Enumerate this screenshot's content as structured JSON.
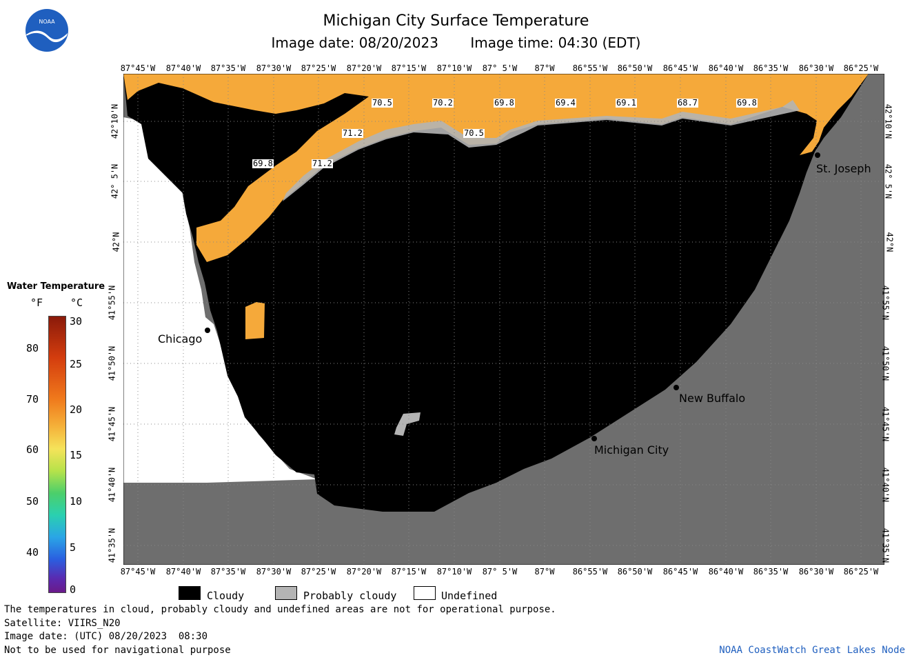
{
  "header": {
    "title": "Michigan City Surface Temperature",
    "image_date": "Image date: 08/20/2023",
    "image_time": "Image time: 04:30 (EDT)"
  },
  "logo": {
    "text": "NOAA"
  },
  "axes": {
    "lon_ticks": [
      "87°45'W",
      "87°40'W",
      "87°35'W",
      "87°30'W",
      "87°25'W",
      "87°20'W",
      "87°15'W",
      "87°10'W",
      "87° 5'W",
      "87°W",
      "86°55'W",
      "86°50'W",
      "86°45'W",
      "86°40'W",
      "86°35'W",
      "86°30'W",
      "86°25'W"
    ],
    "lat_ticks": [
      "42°10'N",
      "42° 5'N",
      "42°N",
      "41°55'N",
      "41°50'N",
      "41°45'N",
      "41°40'N",
      "41°35'N"
    ]
  },
  "legend": {
    "title": "Water Temperature",
    "unit_f": "°F",
    "unit_c": "°C",
    "f_ticks": [
      "80",
      "70",
      "60",
      "50",
      "40"
    ],
    "c_ticks": [
      "30",
      "25",
      "20",
      "15",
      "10",
      "5",
      "0"
    ]
  },
  "key": {
    "cloudy": "Cloudy",
    "probably_cloudy": "Probably cloudy",
    "undefined": "Undefined"
  },
  "cities": {
    "chicago": "Chicago",
    "st_joseph": "St. Joseph",
    "new_buffalo": "New Buffalo",
    "michigan_city": "Michigan City"
  },
  "temp_labels": [
    "70.5",
    "70.2",
    "69.8",
    "69.4",
    "69.1",
    "68.7",
    "69.8",
    "71.2",
    "70.5",
    "69.8",
    "71.2"
  ],
  "footer": {
    "line1": "The temperatures in cloud, probably cloudy and undefined areas are not for operational purpose.",
    "line2": "Satellite: VIIRS_N20",
    "line3": "Image date: (UTC) 08/20/2023  08:30",
    "line4": "Not to be used for navigational purpose",
    "credit": "NOAA CoastWatch Great Lakes Node"
  },
  "colors": {
    "land": "#6e6e6e",
    "cloud": "#000000",
    "probably_cloudy": "#b4b4b4",
    "water_warm": "#f5a93a",
    "credit_blue": "#1f5fbf"
  }
}
